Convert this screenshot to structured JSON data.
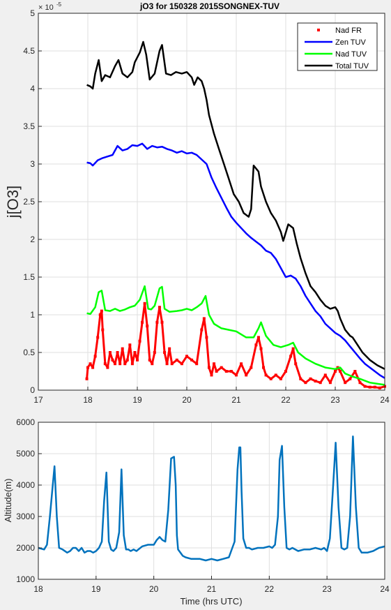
{
  "chart_data": [
    {
      "type": "line",
      "title": "jO3 for 150328 2015SONGNEX-TUV",
      "ylabel": "j[O3]",
      "xlabel": "",
      "exponent_label": "× 10",
      "exponent_power": "-5",
      "xlim": [
        17,
        24
      ],
      "ylim": [
        0,
        5
      ],
      "xticks": [
        17,
        18,
        19,
        20,
        21,
        22,
        23,
        24
      ],
      "yticks": [
        0,
        0.5,
        1,
        1.5,
        2,
        2.5,
        3,
        3.5,
        4,
        4.5,
        5
      ],
      "grid": true,
      "legend_position": "top-right",
      "series": [
        {
          "name": "Nad FR",
          "color": "#ff0000",
          "style": "markers",
          "x": [
            17.98,
            18.0,
            18.05,
            18.1,
            18.15,
            18.2,
            18.25,
            18.28,
            18.3,
            18.35,
            18.4,
            18.45,
            18.5,
            18.55,
            18.6,
            18.65,
            18.7,
            18.75,
            18.8,
            18.85,
            18.9,
            18.95,
            19.0,
            19.05,
            19.1,
            19.15,
            19.2,
            19.25,
            19.3,
            19.35,
            19.4,
            19.45,
            19.5,
            19.55,
            19.6,
            19.65,
            19.7,
            19.8,
            19.9,
            20.0,
            20.1,
            20.2,
            20.3,
            20.35,
            20.4,
            20.45,
            20.5,
            20.55,
            20.6,
            20.7,
            20.8,
            20.9,
            21.0,
            21.1,
            21.2,
            21.3,
            21.4,
            21.45,
            21.5,
            21.55,
            21.6,
            21.7,
            21.8,
            21.9,
            22.0,
            22.1,
            22.15,
            22.2,
            22.3,
            22.4,
            22.5,
            22.6,
            22.7,
            22.8,
            22.9,
            23.0,
            23.05,
            23.1,
            23.2,
            23.3,
            23.4,
            23.5,
            23.6,
            23.7,
            23.8,
            23.9,
            24.0
          ],
          "y": [
            0.15,
            0.3,
            0.35,
            0.3,
            0.45,
            0.7,
            1.0,
            1.05,
            0.8,
            0.35,
            0.3,
            0.5,
            0.4,
            0.35,
            0.5,
            0.35,
            0.55,
            0.35,
            0.4,
            0.6,
            0.35,
            0.5,
            0.4,
            0.65,
            0.9,
            1.15,
            0.85,
            0.4,
            0.35,
            0.5,
            0.9,
            1.1,
            0.9,
            0.5,
            0.35,
            0.55,
            0.35,
            0.4,
            0.35,
            0.45,
            0.4,
            0.35,
            0.8,
            0.95,
            0.7,
            0.3,
            0.2,
            0.35,
            0.25,
            0.3,
            0.25,
            0.25,
            0.2,
            0.35,
            0.2,
            0.3,
            0.6,
            0.7,
            0.55,
            0.3,
            0.2,
            0.15,
            0.2,
            0.15,
            0.25,
            0.45,
            0.55,
            0.35,
            0.15,
            0.1,
            0.15,
            0.12,
            0.1,
            0.2,
            0.1,
            0.25,
            0.3,
            0.25,
            0.1,
            0.15,
            0.25,
            0.1,
            0.05,
            0.04,
            0.04,
            0.03,
            0.05
          ]
        },
        {
          "name": "Zen TUV",
          "color": "#0000ff",
          "style": "line",
          "x": [
            17.98,
            18.05,
            18.1,
            18.2,
            18.3,
            18.4,
            18.5,
            18.6,
            18.7,
            18.8,
            18.9,
            19.0,
            19.1,
            19.2,
            19.3,
            19.4,
            19.5,
            19.6,
            19.7,
            19.8,
            19.9,
            20.0,
            20.1,
            20.2,
            20.3,
            20.4,
            20.5,
            20.6,
            20.7,
            20.8,
            20.9,
            21.0,
            21.1,
            21.2,
            21.3,
            21.4,
            21.5,
            21.6,
            21.7,
            21.8,
            21.9,
            22.0,
            22.1,
            22.2,
            22.3,
            22.4,
            22.5,
            22.6,
            22.7,
            22.8,
            22.9,
            23.0,
            23.1,
            23.2,
            23.3,
            23.4,
            23.5,
            23.6,
            23.7,
            23.8,
            23.9,
            24.0
          ],
          "y": [
            3.02,
            3.01,
            2.98,
            3.05,
            3.08,
            3.1,
            3.12,
            3.24,
            3.18,
            3.2,
            3.25,
            3.24,
            3.27,
            3.2,
            3.24,
            3.22,
            3.23,
            3.2,
            3.18,
            3.15,
            3.17,
            3.14,
            3.15,
            3.12,
            3.06,
            3.0,
            2.82,
            2.68,
            2.55,
            2.42,
            2.3,
            2.22,
            2.15,
            2.08,
            2.02,
            1.97,
            1.92,
            1.85,
            1.82,
            1.74,
            1.62,
            1.5,
            1.52,
            1.48,
            1.38,
            1.25,
            1.15,
            1.05,
            0.98,
            0.88,
            0.82,
            0.76,
            0.72,
            0.66,
            0.58,
            0.5,
            0.42,
            0.35,
            0.3,
            0.25,
            0.2,
            0.16
          ]
        },
        {
          "name": "Nad TUV",
          "color": "#00ff00",
          "style": "line",
          "x": [
            17.98,
            18.05,
            18.15,
            18.22,
            18.28,
            18.35,
            18.45,
            18.55,
            18.65,
            18.75,
            18.85,
            18.95,
            19.05,
            19.15,
            19.22,
            19.28,
            19.35,
            19.45,
            19.5,
            19.55,
            19.65,
            19.8,
            19.9,
            20.0,
            20.1,
            20.2,
            20.3,
            20.38,
            20.45,
            20.55,
            20.7,
            20.85,
            21.0,
            21.2,
            21.35,
            21.45,
            21.5,
            21.6,
            21.75,
            21.9,
            22.05,
            22.15,
            22.25,
            22.4,
            22.6,
            22.8,
            23.0,
            23.1,
            23.2,
            23.35,
            23.5,
            23.7,
            23.9,
            24.0
          ],
          "y": [
            1.02,
            1.01,
            1.1,
            1.3,
            1.32,
            1.06,
            1.05,
            1.08,
            1.05,
            1.07,
            1.1,
            1.12,
            1.2,
            1.38,
            1.08,
            1.07,
            1.12,
            1.35,
            1.37,
            1.08,
            1.04,
            1.05,
            1.06,
            1.08,
            1.06,
            1.1,
            1.15,
            1.25,
            1.0,
            0.88,
            0.82,
            0.8,
            0.78,
            0.7,
            0.7,
            0.82,
            0.9,
            0.72,
            0.6,
            0.57,
            0.6,
            0.63,
            0.5,
            0.42,
            0.35,
            0.3,
            0.28,
            0.3,
            0.22,
            0.18,
            0.15,
            0.1,
            0.08,
            0.07
          ]
        },
        {
          "name": "Total TUV",
          "color": "#000000",
          "style": "line",
          "x": [
            17.98,
            18.05,
            18.1,
            18.15,
            18.22,
            18.28,
            18.35,
            18.45,
            18.55,
            18.62,
            18.7,
            18.8,
            18.9,
            18.95,
            19.05,
            19.12,
            19.18,
            19.25,
            19.35,
            19.45,
            19.5,
            19.58,
            19.68,
            19.78,
            19.9,
            20.0,
            20.1,
            20.15,
            20.22,
            20.3,
            20.35,
            20.4,
            20.45,
            20.55,
            20.65,
            20.75,
            20.85,
            20.95,
            21.05,
            21.15,
            21.25,
            21.3,
            21.35,
            21.45,
            21.5,
            21.6,
            21.7,
            21.8,
            21.9,
            21.95,
            22.05,
            22.15,
            22.22,
            22.3,
            22.4,
            22.5,
            22.6,
            22.7,
            22.8,
            22.9,
            23.0,
            23.05,
            23.1,
            23.2,
            23.3,
            23.35,
            23.45,
            23.55,
            23.7,
            23.85,
            24.0
          ],
          "y": [
            4.05,
            4.03,
            4.0,
            4.2,
            4.38,
            4.1,
            4.18,
            4.15,
            4.3,
            4.38,
            4.2,
            4.15,
            4.22,
            4.35,
            4.48,
            4.62,
            4.45,
            4.12,
            4.2,
            4.5,
            4.58,
            4.2,
            4.18,
            4.22,
            4.2,
            4.22,
            4.15,
            4.05,
            4.15,
            4.1,
            4.0,
            3.85,
            3.65,
            3.4,
            3.2,
            3.0,
            2.8,
            2.6,
            2.5,
            2.35,
            2.3,
            2.4,
            2.98,
            2.9,
            2.7,
            2.5,
            2.35,
            2.25,
            2.1,
            1.98,
            2.2,
            2.15,
            1.95,
            1.75,
            1.55,
            1.38,
            1.3,
            1.2,
            1.12,
            1.08,
            1.1,
            1.05,
            0.95,
            0.8,
            0.72,
            0.7,
            0.6,
            0.5,
            0.4,
            0.33,
            0.28
          ]
        }
      ]
    },
    {
      "type": "line",
      "title": "",
      "xlabel": "Time (hrs UTC)",
      "ylabel": "Altitude(m)",
      "xlim": [
        18,
        24
      ],
      "ylim": [
        1000,
        6000
      ],
      "xticks": [
        18,
        19,
        20,
        21,
        22,
        23,
        24
      ],
      "yticks": [
        1000,
        2000,
        3000,
        4000,
        5000,
        6000
      ],
      "grid": true,
      "series": [
        {
          "color": "#0072bd",
          "x": [
            18.0,
            18.1,
            18.15,
            18.2,
            18.25,
            18.28,
            18.32,
            18.36,
            18.42,
            18.5,
            18.55,
            18.6,
            18.65,
            18.7,
            18.75,
            18.8,
            18.85,
            18.9,
            18.95,
            19.0,
            19.05,
            19.1,
            19.14,
            19.18,
            19.22,
            19.26,
            19.3,
            19.35,
            19.4,
            19.44,
            19.48,
            19.52,
            19.56,
            19.6,
            19.65,
            19.7,
            19.8,
            19.9,
            20.0,
            20.05,
            20.1,
            20.15,
            20.2,
            20.25,
            20.3,
            20.35,
            20.38,
            20.4,
            20.42,
            20.46,
            20.5,
            20.55,
            20.65,
            20.8,
            20.9,
            21.0,
            21.1,
            21.2,
            21.3,
            21.4,
            21.45,
            21.48,
            21.5,
            21.52,
            21.55,
            21.6,
            21.65,
            21.7,
            21.8,
            21.9,
            22.0,
            22.05,
            22.1,
            22.15,
            22.18,
            22.22,
            22.26,
            22.3,
            22.35,
            22.4,
            22.5,
            22.6,
            22.7,
            22.8,
            22.9,
            22.95,
            23.0,
            23.05,
            23.1,
            23.15,
            23.2,
            23.25,
            23.3,
            23.35,
            23.4,
            23.45,
            23.5,
            23.55,
            23.6,
            23.7,
            23.8,
            23.9,
            24.0
          ],
          "y": [
            2000,
            1950,
            2100,
            3000,
            4000,
            4600,
            3000,
            2000,
            1950,
            1850,
            1900,
            2000,
            2000,
            1900,
            2000,
            1850,
            1900,
            1900,
            1850,
            1900,
            2000,
            2200,
            3500,
            4400,
            2200,
            1950,
            1900,
            2000,
            2500,
            4500,
            2400,
            1950,
            1950,
            1900,
            1950,
            1900,
            2050,
            2100,
            2100,
            2250,
            2350,
            2250,
            2200,
            3200,
            4850,
            4900,
            4000,
            2400,
            1950,
            1850,
            1750,
            1700,
            1650,
            1650,
            1600,
            1650,
            1600,
            1650,
            1700,
            2200,
            4500,
            5200,
            5200,
            3800,
            2300,
            2000,
            2000,
            1950,
            2000,
            2000,
            2050,
            2000,
            2100,
            3000,
            4800,
            5250,
            3300,
            2000,
            1950,
            2000,
            1900,
            1950,
            1950,
            2000,
            1950,
            2000,
            1900,
            2300,
            3800,
            5350,
            3300,
            2000,
            1950,
            2000,
            3000,
            5550,
            3300,
            2000,
            1850,
            1850,
            1900,
            2000,
            2050
          ]
        }
      ]
    }
  ]
}
